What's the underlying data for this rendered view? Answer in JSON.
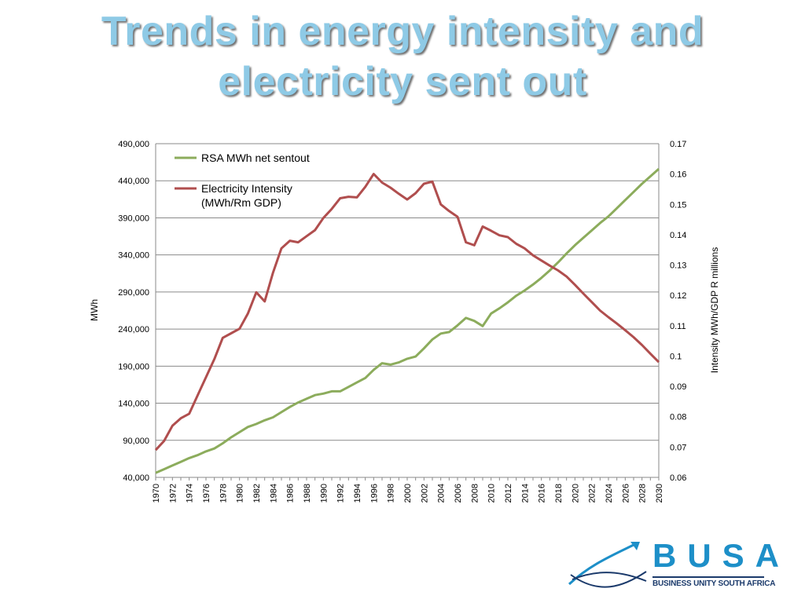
{
  "slide": {
    "title_line1": "Trends in energy intensity and",
    "title_line2": "electricity sent out"
  },
  "logo": {
    "name": "BUSA",
    "tagline": "BUSINESS UNITY SOUTH AFRICA",
    "icon": "busa-swoosh-arrow-logo",
    "colors": {
      "primary": "#1d8fc8",
      "secondary": "#1b3a6b"
    }
  },
  "chart_data": {
    "type": "line",
    "title": "",
    "xlabel": "",
    "ylabel": "MWh",
    "y2label": "Intensity MWh/GDP R millions",
    "x": [
      1970,
      1971,
      1972,
      1973,
      1974,
      1975,
      1976,
      1977,
      1978,
      1979,
      1980,
      1981,
      1982,
      1983,
      1984,
      1985,
      1986,
      1987,
      1988,
      1989,
      1990,
      1991,
      1992,
      1993,
      1994,
      1995,
      1996,
      1997,
      1998,
      1999,
      2000,
      2001,
      2002,
      2003,
      2004,
      2005,
      2006,
      2007,
      2008,
      2009,
      2010,
      2011,
      2012,
      2013,
      2014,
      2015,
      2016,
      2017,
      2018,
      2019,
      2020,
      2021,
      2022,
      2023,
      2024,
      2025,
      2026,
      2027,
      2028,
      2029,
      2030
    ],
    "x_tick_labels": [
      "1970",
      "1972",
      "1974",
      "1976",
      "1978",
      "1980",
      "1982",
      "1984",
      "1986",
      "1988",
      "1990",
      "1992",
      "1994",
      "1996",
      "1998",
      "2000",
      "2002",
      "2004",
      "2006",
      "2008",
      "2010",
      "2012",
      "2014",
      "2016",
      "2018",
      "2020",
      "2022",
      "2024",
      "2026",
      "2028",
      "2030"
    ],
    "ylim": [
      40000,
      490000
    ],
    "y_ticks": [
      "40,000",
      "90,000",
      "140,000",
      "190,000",
      "240,000",
      "290,000",
      "340,000",
      "390,000",
      "440,000",
      "490,000"
    ],
    "y2lim": [
      0.06,
      0.17
    ],
    "y2_ticks": [
      "0.06",
      "0.07",
      "0.08",
      "0.09",
      "0.1",
      "0.11",
      "0.12",
      "0.13",
      "0.14",
      "0.15",
      "0.16",
      "0.17"
    ],
    "grid": "horizontal",
    "legend_position": "top-left",
    "series": [
      {
        "name": "RSA MWh net sentout",
        "axis": "left",
        "color": "#8cac5c",
        "values": [
          46000,
          51000,
          56000,
          61000,
          66000,
          70000,
          75000,
          79000,
          86000,
          94000,
          101000,
          108000,
          112000,
          117000,
          121000,
          128000,
          135000,
          141000,
          146000,
          151000,
          153000,
          156000,
          156000,
          162000,
          168000,
          174000,
          185000,
          194000,
          192000,
          195000,
          200000,
          203000,
          214000,
          226000,
          234000,
          236000,
          245000,
          255000,
          251000,
          244000,
          261000,
          268000,
          276000,
          285000,
          292000,
          300000,
          309000,
          319000,
          330000,
          342000,
          353000,
          363000,
          373000,
          383000,
          392000,
          403000,
          414000,
          425000,
          436000,
          446000,
          456000
        ]
      },
      {
        "name": "Electricity Intensity\n(MWh/Rm GDP)",
        "axis": "right",
        "color": "#b04e4e",
        "values": [
          0.069,
          0.072,
          0.077,
          0.0795,
          0.081,
          0.087,
          0.093,
          0.099,
          0.106,
          0.1075,
          0.109,
          0.114,
          0.121,
          0.118,
          0.1275,
          0.1355,
          0.138,
          0.1375,
          0.1395,
          0.1415,
          0.1455,
          0.1485,
          0.152,
          0.1525,
          0.1523,
          0.1558,
          0.16,
          0.1572,
          0.1555,
          0.1535,
          0.1516,
          0.1537,
          0.1568,
          0.1575,
          0.15,
          0.1478,
          0.1459,
          0.1375,
          0.1365,
          0.1427,
          0.1413,
          0.1398,
          0.1392,
          0.137,
          0.1355,
          0.1332,
          0.1315,
          0.1298,
          0.1282,
          0.1262,
          0.1235,
          0.1206,
          0.1178,
          0.115,
          0.1128,
          0.1107,
          0.1085,
          0.1062,
          0.1036,
          0.1008,
          0.098
        ]
      }
    ]
  }
}
